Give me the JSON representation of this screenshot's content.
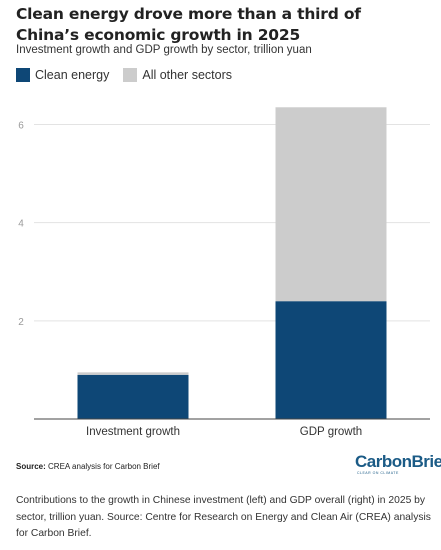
{
  "title": "Clean energy drove more than a third of China’s economic growth in 2025",
  "subtitle": "Investment growth and GDP growth by sector, trillion yuan",
  "legend": [
    {
      "label": "Clean energy",
      "color": "#0e4776"
    },
    {
      "label": "All other sectors",
      "color": "#cccccc"
    }
  ],
  "source_label": "Source:",
  "source_text": "CREA analysis for Carbon Brief",
  "logo": {
    "text": "CarbonBrief",
    "tagline": "CLEAR ON CLIMATE"
  },
  "caption": "Contributions to the growth in Chinese investment (left) and GDP overall (right) in 2025 by sector, trillion yuan. Source: Centre for Research on Energy and Clean Air (CREA) analysis for Carbon Brief.",
  "chart_data": {
    "type": "bar",
    "stacked": true,
    "categories": [
      "Investment growth",
      "GDP growth"
    ],
    "series": [
      {
        "name": "Clean energy",
        "color": "#0e4776",
        "values": [
          0.9,
          2.4
        ]
      },
      {
        "name": "All other sectors",
        "color": "#cccccc",
        "values": [
          0.05,
          3.95
        ]
      }
    ],
    "ylim": [
      0,
      6.6
    ],
    "yticks": [
      2,
      4,
      6
    ],
    "grid": true,
    "legend_position": "top-left",
    "xlabel": "",
    "ylabel": ""
  }
}
